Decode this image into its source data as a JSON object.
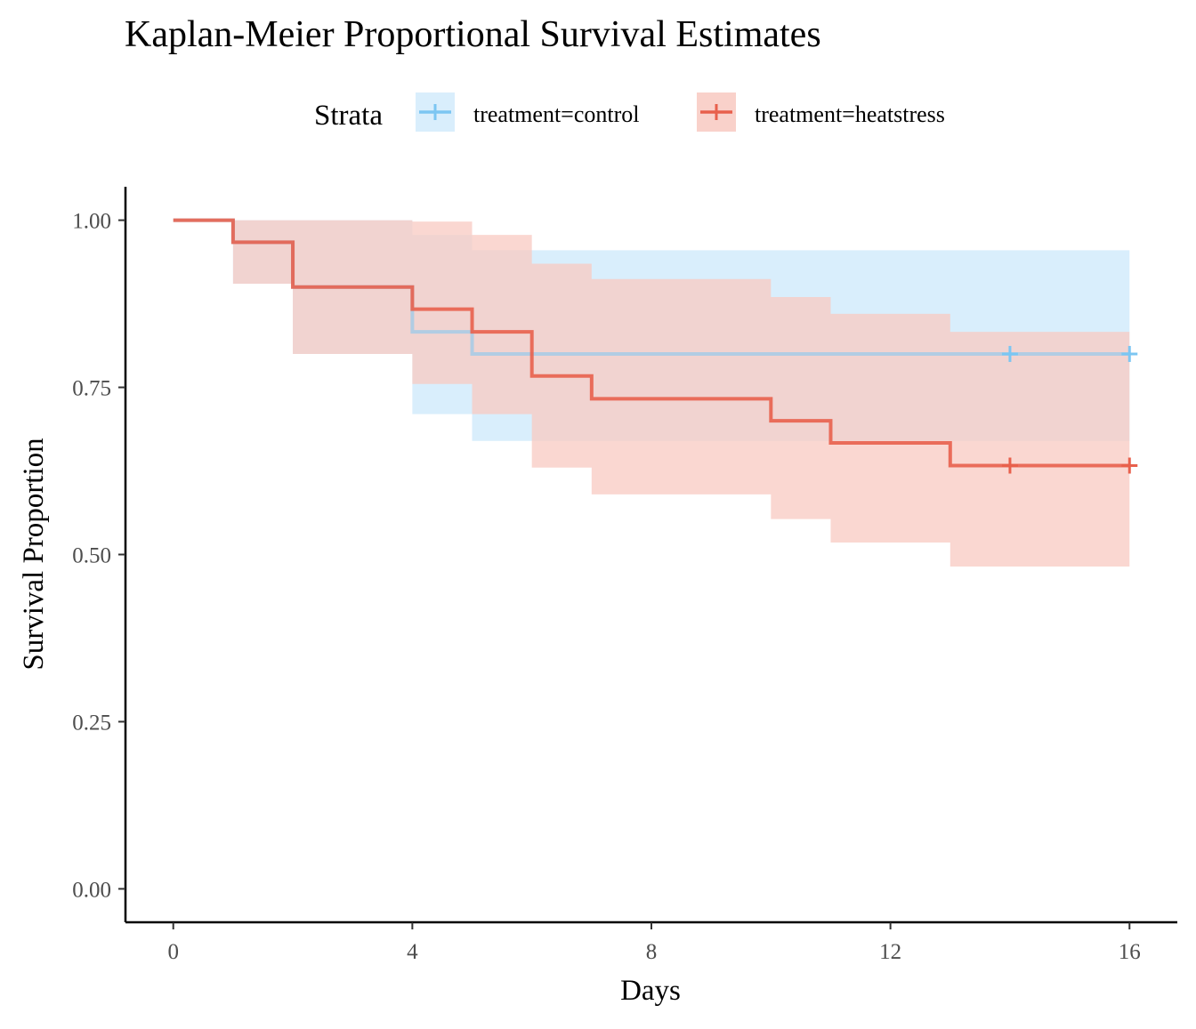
{
  "chart_data": {
    "type": "line",
    "title": "Kaplan-Meier Proportional Survival Estimates",
    "xlabel": "Days",
    "ylabel": "Survival Proportion",
    "xlim": [
      -0.8,
      16.8
    ],
    "ylim": [
      -0.05,
      1.05
    ],
    "x_ticks": [
      0,
      4,
      8,
      12,
      16
    ],
    "x_tick_labels": [
      "0",
      "4",
      "8",
      "12",
      "16"
    ],
    "y_ticks": [
      0,
      0.25,
      0.5,
      0.75,
      1.0
    ],
    "y_tick_labels": [
      "0.00",
      "0.25",
      "0.50",
      "0.75",
      "1.00"
    ],
    "grid": false,
    "legend": {
      "title": "Strata",
      "position": "top"
    },
    "step": true,
    "confidence_bands": true,
    "series": [
      {
        "name": "treatment=control",
        "color": "#7cc6f2",
        "band_color": "#d9eefc",
        "x": [
          0,
          1,
          2,
          4,
          5,
          6,
          7,
          10,
          11,
          13,
          16
        ],
        "y": [
          1.0,
          0.967,
          0.9,
          0.833,
          0.8,
          0.8,
          0.8,
          0.8,
          0.8,
          0.8,
          0.8
        ],
        "lower": [
          1.0,
          0.905,
          0.8,
          0.71,
          0.67,
          0.67,
          0.67,
          0.67,
          0.67,
          0.67,
          0.67
        ],
        "upper": [
          1.0,
          1.0,
          1.0,
          0.978,
          0.955,
          0.955,
          0.955,
          0.955,
          0.955,
          0.955,
          0.955
        ],
        "censor_times": [
          14,
          16
        ],
        "censor_values": [
          0.8,
          0.8
        ]
      },
      {
        "name": "treatment=heatstress",
        "color": "#e8604c",
        "band_color": "#f8c9c1",
        "x": [
          0,
          1,
          2,
          4,
          5,
          6,
          7,
          10,
          11,
          13,
          16
        ],
        "y": [
          1.0,
          0.967,
          0.9,
          0.867,
          0.833,
          0.767,
          0.733,
          0.7,
          0.667,
          0.633,
          0.633
        ],
        "lower": [
          1.0,
          0.905,
          0.8,
          0.755,
          0.71,
          0.63,
          0.59,
          0.553,
          0.518,
          0.482,
          0.482
        ],
        "upper": [
          1.0,
          1.0,
          1.0,
          0.998,
          0.978,
          0.935,
          0.912,
          0.885,
          0.86,
          0.833,
          0.833
        ],
        "censor_times": [
          14,
          16
        ],
        "censor_values": [
          0.633,
          0.633
        ]
      }
    ]
  }
}
